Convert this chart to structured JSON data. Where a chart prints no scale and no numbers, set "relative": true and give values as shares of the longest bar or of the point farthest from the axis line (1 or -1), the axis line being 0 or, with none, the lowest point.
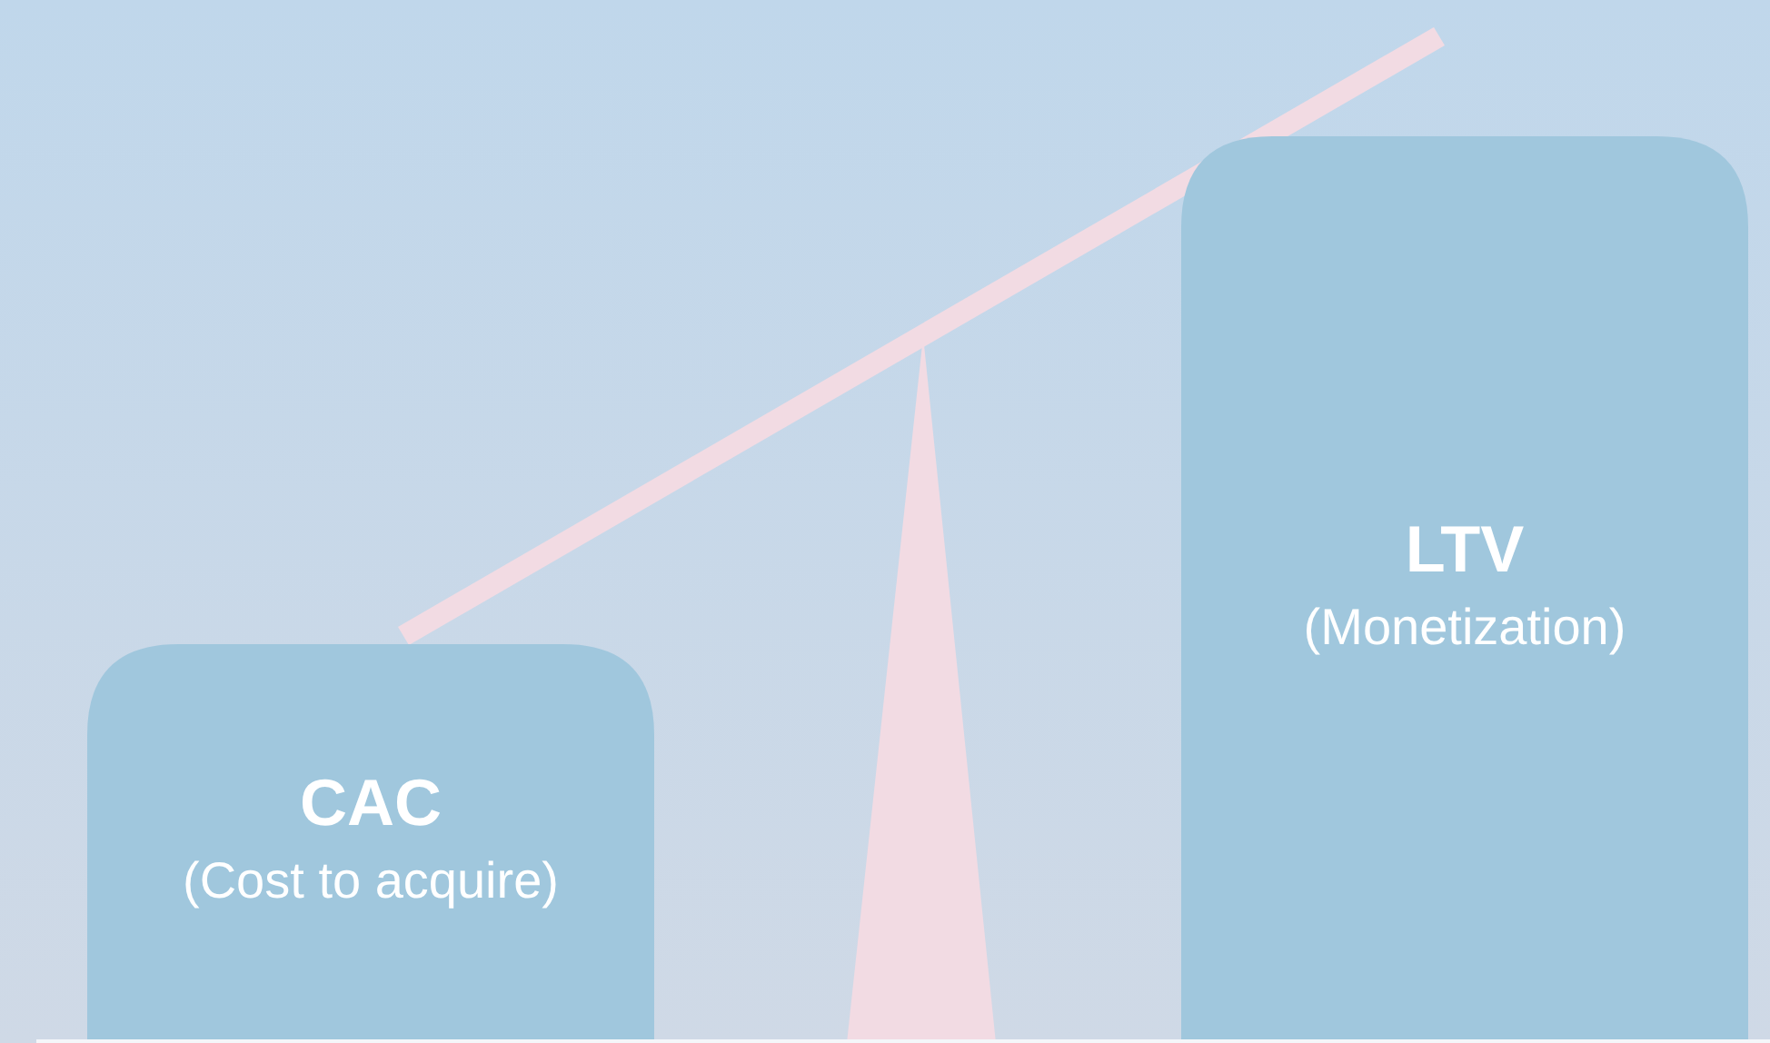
{
  "chart_data": {
    "type": "bar",
    "relative": true,
    "categories": [
      "CAC",
      "LTV"
    ],
    "values": [
      0.44,
      1
    ],
    "color": "#a0c7dd",
    "annotations": [
      "(Cost to acquire)",
      "(Monetization)"
    ]
  }
}
